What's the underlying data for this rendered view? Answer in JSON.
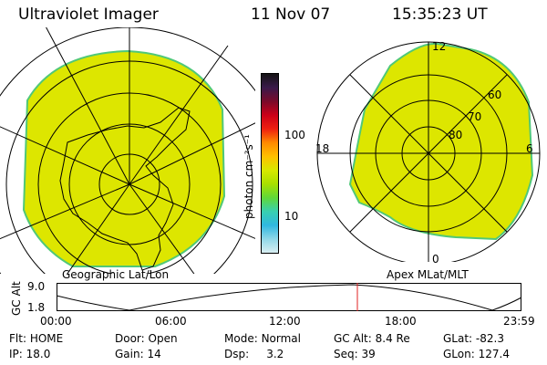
{
  "header": {
    "title": "Ultraviolet Imager",
    "date": "11 Nov 07",
    "time": "15:35:23 UT"
  },
  "left_map": {
    "label": "Geographic Lat/Lon"
  },
  "right_map": {
    "label": "Apex MLat/MLT",
    "mlt_labels": [
      "12",
      "18",
      "6",
      "0"
    ],
    "lat_labels": [
      "60",
      "70",
      "80"
    ]
  },
  "colorbar": {
    "unit": "photon cm⁻²s⁻¹",
    "ticks": [
      "100",
      "10"
    ],
    "colors": [
      "#141414",
      "#3a1a4a",
      "#7a0a2a",
      "#cc0018",
      "#ee2010",
      "#ff8a00",
      "#ffc000",
      "#d8e800",
      "#a8e000",
      "#60d838",
      "#38d0b0",
      "#30b8e0",
      "#90d8e8",
      "#d8eef2"
    ]
  },
  "altitude_plot": {
    "axis_label": "GC Alt",
    "y_ticks": [
      "9.0",
      "1.8"
    ],
    "x_ticks": [
      "00:00",
      "06:00",
      "12:00",
      "18:00",
      "23:59"
    ],
    "current_time_marker": "15:35"
  },
  "status": {
    "row1": [
      {
        "label": "Flt:",
        "value": "HOME"
      },
      {
        "label": "Door:",
        "value": "Open"
      },
      {
        "label": "Mode:",
        "value": "Normal"
      },
      {
        "label": "GC Alt:",
        "value": "8.4 Re"
      },
      {
        "label": "GLat:",
        "value": "-82.3"
      }
    ],
    "row2": [
      {
        "label": "IP:",
        "value": "18.0"
      },
      {
        "label": "Gain:",
        "value": "14"
      },
      {
        "label": "Dsp:",
        "value": "3.2"
      },
      {
        "label": "Seq:",
        "value": "39"
      },
      {
        "label": "GLon:",
        "value": "127.4"
      }
    ]
  }
}
